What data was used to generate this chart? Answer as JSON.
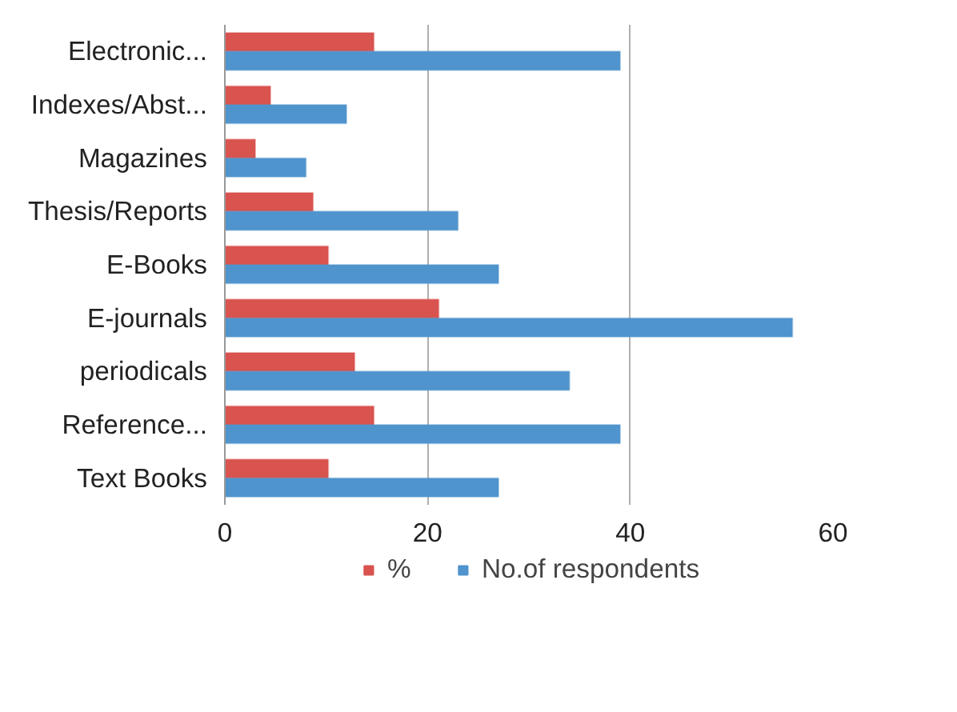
{
  "chart_data": {
    "type": "bar",
    "orientation": "horizontal",
    "categories": [
      "Electronic...",
      "Indexes/Abst...",
      "Magazines",
      "Thesis/Reports",
      "E-Books",
      "E-journals",
      "periodicals",
      "Reference...",
      "Text Books"
    ],
    "series": [
      {
        "name": "%",
        "color": "#d9534f",
        "values": [
          14.7,
          4.5,
          3.0,
          8.7,
          10.2,
          21.1,
          12.8,
          14.7,
          10.2
        ]
      },
      {
        "name": "No.of respondents",
        "color": "#4f94cd",
        "values": [
          39,
          12,
          8,
          23,
          27,
          56,
          34,
          39,
          27
        ]
      }
    ],
    "xlim": [
      0,
      60
    ],
    "xticks": [
      0,
      20,
      40,
      60
    ],
    "grid": "x",
    "legend": "bottom"
  }
}
